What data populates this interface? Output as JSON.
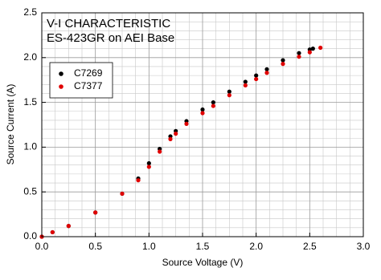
{
  "chart_data": {
    "type": "scatter",
    "title": "V-I CHARACTERISTIC",
    "subtitle": "ES-423GR on AEI Base",
    "x_label": "Source Voltage (V)",
    "y_label": "Source Current (A)",
    "xlim": [
      0,
      3
    ],
    "ylim": [
      0,
      2.5
    ],
    "xticks": [
      {
        "value": 0,
        "label": "0.0"
      },
      {
        "value": 0.5,
        "label": "0.5"
      },
      {
        "value": 1,
        "label": "1.0"
      },
      {
        "value": 1.5,
        "label": "1.5"
      },
      {
        "value": 2,
        "label": "2.0"
      },
      {
        "value": 2.5,
        "label": "2.5"
      },
      {
        "value": 3,
        "label": "3.0"
      }
    ],
    "yticks": [
      {
        "value": 0,
        "label": "0.0"
      },
      {
        "value": 0.5,
        "label": "0.5"
      },
      {
        "value": 1,
        "label": "1.0"
      },
      {
        "value": 1.5,
        "label": "1.5"
      },
      {
        "value": 2,
        "label": "2.0"
      },
      {
        "value": 2.5,
        "label": "2.5"
      }
    ],
    "grid": true,
    "legend": "upper-left",
    "series": [
      {
        "name": "C7269",
        "color": "#000000",
        "x": [
          0.0,
          0.1,
          0.25,
          0.5,
          0.75,
          0.9,
          1.0,
          1.1,
          1.2,
          1.25,
          1.35,
          1.5,
          1.6,
          1.75,
          1.9,
          2.0,
          2.1,
          2.25,
          2.4,
          2.5,
          2.53
        ],
        "values": [
          0.0,
          0.05,
          0.12,
          0.27,
          0.48,
          0.65,
          0.82,
          0.98,
          1.12,
          1.18,
          1.29,
          1.42,
          1.5,
          1.62,
          1.73,
          1.8,
          1.87,
          1.97,
          2.05,
          2.09,
          2.1
        ]
      },
      {
        "name": "C7377",
        "color": "#e00000",
        "x": [
          0.0,
          0.1,
          0.25,
          0.5,
          0.75,
          0.9,
          1.0,
          1.1,
          1.2,
          1.25,
          1.35,
          1.5,
          1.6,
          1.75,
          1.9,
          2.0,
          2.1,
          2.25,
          2.4,
          2.5,
          2.6
        ],
        "values": [
          0.0,
          0.05,
          0.12,
          0.27,
          0.48,
          0.63,
          0.78,
          0.95,
          1.09,
          1.15,
          1.26,
          1.38,
          1.46,
          1.58,
          1.69,
          1.76,
          1.83,
          1.93,
          2.01,
          2.06,
          2.11
        ]
      }
    ]
  }
}
